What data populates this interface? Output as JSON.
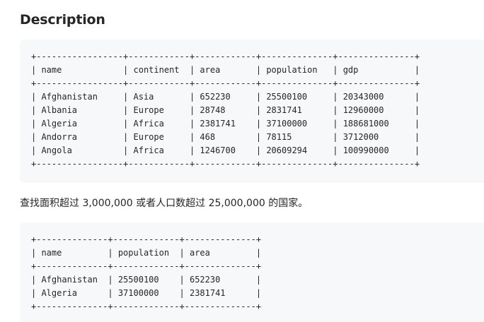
{
  "section": {
    "heading": "Description",
    "task_text": "查找面积超过 3,000,000 或者人口数超过 25,000,000 的国家。"
  },
  "world_table": {
    "text": "+-----------------+------------+------------+--------------+---------------+\n| name            | continent  | area       | population   | gdp           |\n+-----------------+------------+------------+--------------+---------------+\n| Afghanistan     | Asia       | 652230     | 25500100     | 20343000      |\n| Albania         | Europe     | 28748      | 2831741      | 12960000      |\n| Algeria         | Africa     | 2381741    | 37100000     | 188681000     |\n| Andorra         | Europe     | 468        | 78115        | 3712000       |\n| Angola          | Africa     | 1246700    | 20609294     | 100990000     |\n+-----------------+------------+------------+--------------+---------------+"
  },
  "result_table": {
    "text": "+--------------+-------------+--------------+\n| name         | population  | area         |\n+--------------+-------------+--------------+\n| Afghanistan  | 25500100    | 652230       |\n| Algeria      | 37100000    | 2381741      |\n+--------------+-------------+--------------+"
  }
}
